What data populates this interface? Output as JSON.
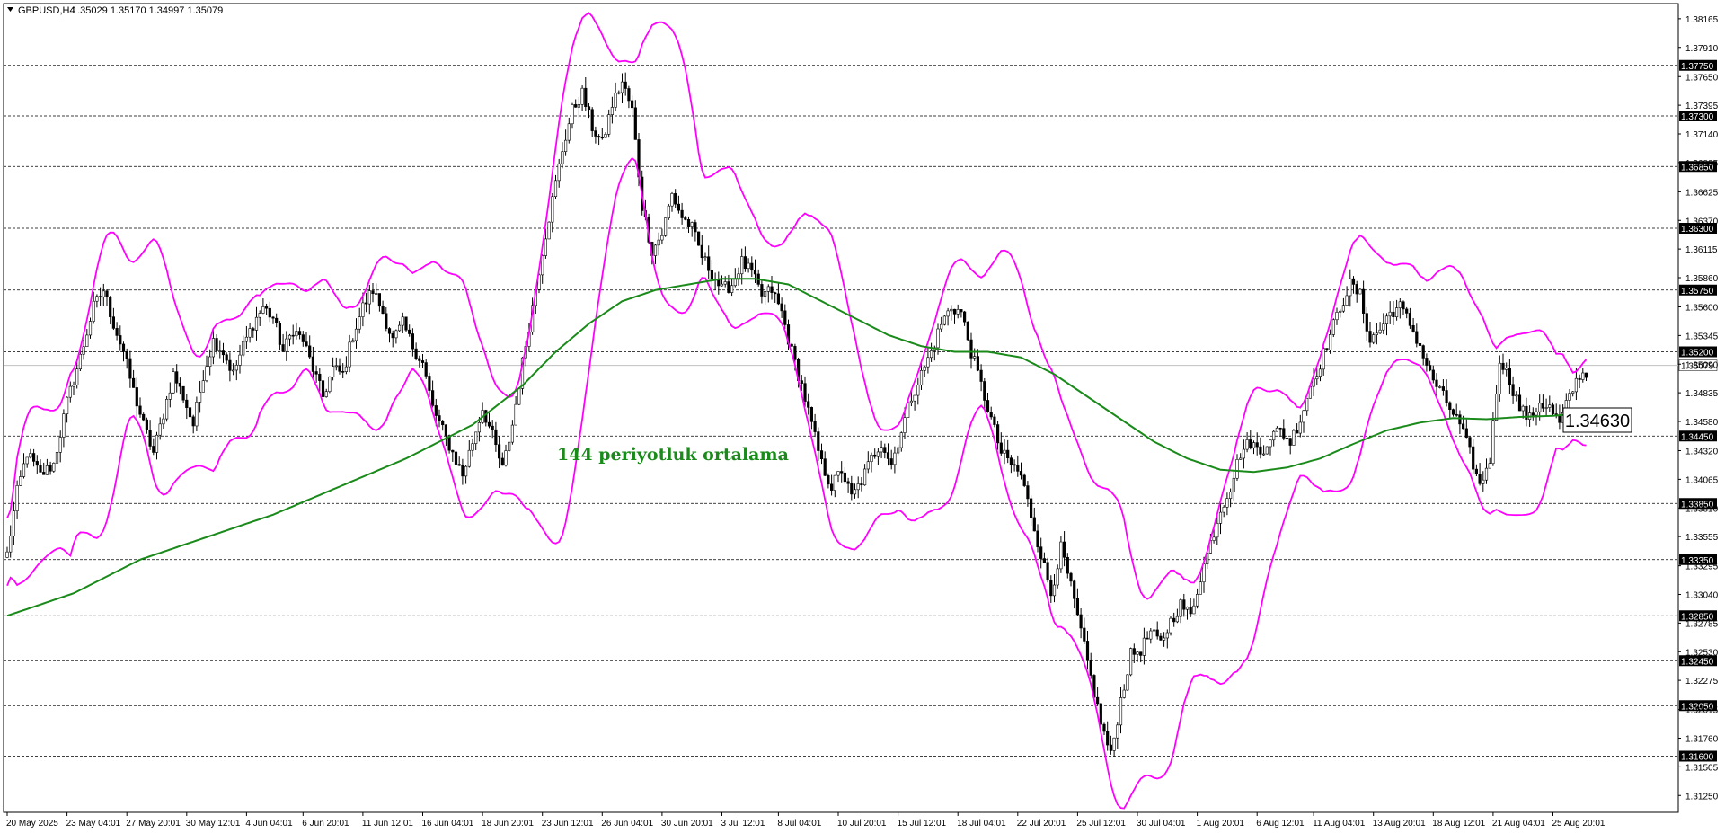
{
  "header": {
    "symbol": "GBPUSD,H4",
    "ohlc": "1.35029 1.35170 1.34997 1.35079"
  },
  "colors": {
    "bull": "#000000",
    "bear": "#000000",
    "bands": "#ff00ff",
    "ma": "#1a8a1a",
    "zone": "#f4a0b4",
    "hline_label_bg": "#000000",
    "current_line": "#c0c0c0"
  },
  "annotation": {
    "ma_label": "144 periyotluk ortalama"
  },
  "price_box": {
    "value": "1.34630"
  },
  "chart_data": {
    "type": "candlestick",
    "title": "",
    "ylim": [
      1.311,
      1.383
    ],
    "y_tick_labels": [
      "1.38165",
      "1.37910",
      "1.37650",
      "1.37395",
      "1.37140",
      "1.36885",
      "1.36625",
      "1.36370",
      "1.36115",
      "1.35860",
      "1.35600",
      "1.35345",
      "1.35090",
      "1.34835",
      "1.34580",
      "1.34320",
      "1.34065",
      "1.33810",
      "1.33555",
      "1.33295",
      "1.33040",
      "1.32785",
      "1.32530",
      "1.32275",
      "1.32015",
      "1.31760",
      "1.31505",
      "1.31250"
    ],
    "x_tick_labels": [
      "20 May 2025",
      "23 May 04:01",
      "27 May 20:01",
      "30 May 12:01",
      "4 Jun 04:01",
      "6 Jun 20:01",
      "11 Jun 12:01",
      "16 Jun 04:01",
      "18 Jun 20:01",
      "23 Jun 12:01",
      "26 Jun 04:01",
      "30 Jun 20:01",
      "3 Jul 12:01",
      "8 Jul 04:01",
      "10 Jul 20:01",
      "15 Jul 12:01",
      "18 Jul 04:01",
      "22 Jul 20:01",
      "25 Jul 12:01",
      "30 Jul 04:01",
      "1 Aug 20:01",
      "6 Aug 12:01",
      "11 Aug 04:01",
      "13 Aug 20:01",
      "18 Aug 12:01",
      "21 Aug 04:01",
      "25 Aug 20:01"
    ],
    "horizontal_levels": [
      "1.37750",
      "1.37300",
      "1.36850",
      "1.36300",
      "1.35750",
      "1.35200",
      "1.34450",
      "1.33850",
      "1.33350",
      "1.32850",
      "1.32450",
      "1.32050",
      "1.31600"
    ],
    "current_price": "1.35079",
    "zone": {
      "top": 1.3575,
      "bottom": 1.3385,
      "x_start": 1175,
      "x_end": 1270
    },
    "close_path": [
      [
        0,
        1.334
      ],
      [
        3,
        1.3395
      ],
      [
        6,
        1.343
      ],
      [
        10,
        1.341
      ],
      [
        14,
        1.342
      ],
      [
        18,
        1.3475
      ],
      [
        22,
        1.3515
      ],
      [
        26,
        1.356
      ],
      [
        29,
        1.3575
      ],
      [
        32,
        1.3545
      ],
      [
        35,
        1.352
      ],
      [
        38,
        1.3485
      ],
      [
        41,
        1.3455
      ],
      [
        44,
        1.343
      ],
      [
        47,
        1.3465
      ],
      [
        50,
        1.35
      ],
      [
        53,
        1.348
      ],
      [
        56,
        1.3455
      ],
      [
        59,
        1.35
      ],
      [
        62,
        1.353
      ],
      [
        65,
        1.352
      ],
      [
        68,
        1.35
      ],
      [
        71,
        1.3525
      ],
      [
        74,
        1.3545
      ],
      [
        77,
        1.356
      ],
      [
        80,
        1.355
      ],
      [
        83,
        1.352
      ],
      [
        86,
        1.354
      ],
      [
        89,
        1.353
      ],
      [
        92,
        1.3505
      ],
      [
        95,
        1.348
      ],
      [
        98,
        1.3505
      ],
      [
        101,
        1.35
      ],
      [
        104,
        1.3535
      ],
      [
        107,
        1.356
      ],
      [
        110,
        1.3575
      ],
      [
        113,
        1.3555
      ],
      [
        116,
        1.353
      ],
      [
        119,
        1.3545
      ],
      [
        122,
        1.3525
      ],
      [
        125,
        1.351
      ],
      [
        128,
        1.347
      ],
      [
        131,
        1.345
      ],
      [
        134,
        1.343
      ],
      [
        137,
        1.341
      ],
      [
        140,
        1.344
      ],
      [
        143,
        1.347
      ],
      [
        146,
        1.3445
      ],
      [
        149,
        1.3415
      ],
      [
        152,
        1.3455
      ],
      [
        155,
        1.351
      ],
      [
        158,
        1.356
      ],
      [
        161,
        1.361
      ],
      [
        164,
        1.3655
      ],
      [
        167,
        1.37
      ],
      [
        170,
        1.3735
      ],
      [
        173,
        1.375
      ],
      [
        176,
        1.372
      ],
      [
        179,
        1.3705
      ],
      [
        182,
        1.374
      ],
      [
        185,
        1.376
      ],
      [
        188,
        1.3735
      ],
      [
        191,
        1.365
      ],
      [
        194,
        1.361
      ],
      [
        197,
        1.3625
      ],
      [
        200,
        1.366
      ],
      [
        203,
        1.364
      ],
      [
        206,
        1.363
      ],
      [
        209,
        1.3605
      ],
      [
        212,
        1.359
      ],
      [
        215,
        1.3575
      ],
      [
        218,
        1.358
      ],
      [
        221,
        1.36
      ],
      [
        224,
        1.359
      ],
      [
        227,
        1.357
      ],
      [
        230,
        1.3575
      ],
      [
        233,
        1.3555
      ],
      [
        236,
        1.352
      ],
      [
        239,
        1.349
      ],
      [
        242,
        1.3455
      ],
      [
        245,
        1.342
      ],
      [
        248,
        1.34
      ],
      [
        251,
        1.3415
      ],
      [
        254,
        1.339
      ],
      [
        257,
        1.3405
      ],
      [
        260,
        1.3425
      ],
      [
        263,
        1.344
      ],
      [
        266,
        1.342
      ],
      [
        269,
        1.345
      ],
      [
        272,
        1.348
      ],
      [
        275,
        1.35
      ],
      [
        278,
        1.352
      ],
      [
        281,
        1.3545
      ],
      [
        284,
        1.356
      ],
      [
        287,
        1.3555
      ],
      [
        290,
        1.352
      ],
      [
        293,
        1.349
      ],
      [
        296,
        1.346
      ],
      [
        299,
        1.343
      ],
      [
        302,
        1.342
      ],
      [
        305,
        1.341
      ],
      [
        308,
        1.3375
      ],
      [
        311,
        1.334
      ],
      [
        314,
        1.3305
      ],
      [
        317,
        1.3345
      ],
      [
        320,
        1.331
      ],
      [
        323,
        1.327
      ],
      [
        326,
        1.323
      ],
      [
        329,
        1.319
      ],
      [
        332,
        1.316
      ],
      [
        335,
        1.321
      ],
      [
        338,
        1.325
      ],
      [
        341,
        1.3255
      ],
      [
        344,
        1.327
      ],
      [
        347,
        1.326
      ],
      [
        350,
        1.328
      ],
      [
        353,
        1.3295
      ],
      [
        356,
        1.3285
      ],
      [
        359,
        1.332
      ],
      [
        362,
        1.335
      ],
      [
        365,
        1.338
      ],
      [
        368,
        1.34
      ],
      [
        371,
        1.343
      ],
      [
        374,
        1.344
      ],
      [
        377,
        1.343
      ],
      [
        380,
        1.3445
      ],
      [
        383,
        1.345
      ],
      [
        386,
        1.344
      ],
      [
        389,
        1.346
      ],
      [
        392,
        1.349
      ],
      [
        395,
        1.351
      ],
      [
        398,
        1.3535
      ],
      [
        401,
        1.356
      ],
      [
        404,
        1.358
      ],
      [
        407,
        1.357
      ],
      [
        410,
        1.353
      ],
      [
        413,
        1.354
      ],
      [
        416,
        1.3555
      ],
      [
        419,
        1.356
      ],
      [
        422,
        1.3545
      ],
      [
        425,
        1.3525
      ],
      [
        428,
        1.35
      ],
      [
        431,
        1.3485
      ],
      [
        434,
        1.347
      ],
      [
        437,
        1.3455
      ],
      [
        440,
        1.343
      ],
      [
        443,
        1.34
      ],
      [
        446,
        1.3425
      ],
      [
        449,
        1.3515
      ],
      [
        452,
        1.3495
      ],
      [
        455,
        1.347
      ],
      [
        458,
        1.346
      ],
      [
        461,
        1.3475
      ],
      [
        464,
        1.347
      ],
      [
        467,
        1.3455
      ],
      [
        470,
        1.348
      ],
      [
        473,
        1.35
      ]
    ],
    "ma_path": [
      [
        0,
        1.3285
      ],
      [
        20,
        1.3305
      ],
      [
        40,
        1.3335
      ],
      [
        60,
        1.3355
      ],
      [
        80,
        1.3375
      ],
      [
        100,
        1.34
      ],
      [
        120,
        1.3425
      ],
      [
        140,
        1.3455
      ],
      [
        155,
        1.349
      ],
      [
        165,
        1.352
      ],
      [
        175,
        1.3545
      ],
      [
        185,
        1.3565
      ],
      [
        195,
        1.3575
      ],
      [
        205,
        1.358
      ],
      [
        215,
        1.3585
      ],
      [
        225,
        1.3585
      ],
      [
        235,
        1.358
      ],
      [
        245,
        1.3565
      ],
      [
        255,
        1.355
      ],
      [
        265,
        1.3535
      ],
      [
        275,
        1.3525
      ],
      [
        285,
        1.352
      ],
      [
        295,
        1.352
      ],
      [
        305,
        1.3515
      ],
      [
        315,
        1.35
      ],
      [
        325,
        1.348
      ],
      [
        335,
        1.346
      ],
      [
        345,
        1.344
      ],
      [
        355,
        1.3425
      ],
      [
        365,
        1.3415
      ],
      [
        375,
        1.3413
      ],
      [
        385,
        1.3417
      ],
      [
        395,
        1.3425
      ],
      [
        405,
        1.3438
      ],
      [
        415,
        1.345
      ],
      [
        425,
        1.3457
      ],
      [
        435,
        1.3461
      ],
      [
        445,
        1.346
      ],
      [
        455,
        1.3462
      ],
      [
        465,
        1.3463
      ],
      [
        473,
        1.3465
      ]
    ]
  }
}
